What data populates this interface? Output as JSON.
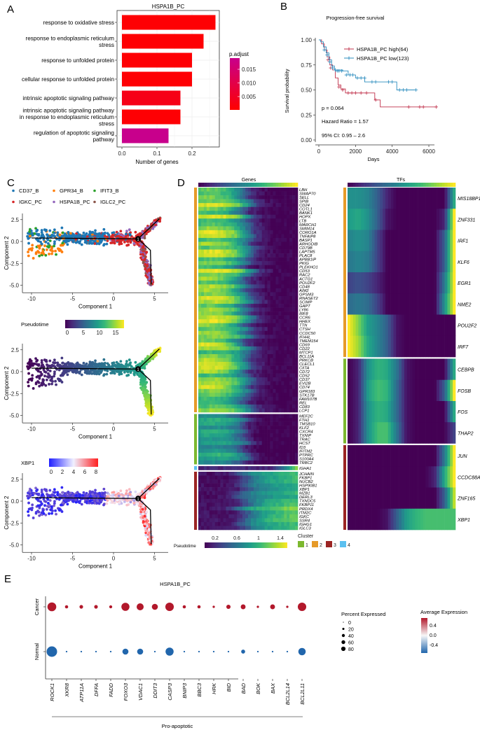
{
  "panels": {
    "a": "A",
    "b": "B",
    "c": "C",
    "d": "D",
    "e": "E"
  },
  "chart_data": [
    {
      "panel": "A",
      "type": "bar",
      "orientation": "horizontal",
      "title": "HSPA1B_PC",
      "xlabel": "Number of genes",
      "xticks": [
        "0.0",
        "0.1",
        "0.2"
      ],
      "xlim": [
        0,
        0.28
      ],
      "categories": [
        [
          "response to oxidative stress"
        ],
        [
          "response to endoplasmic reticulum",
          "stress"
        ],
        [
          "response to unfolded protein"
        ],
        [
          "cellular response to unfolded protein"
        ],
        [
          "intrinsic apoptotic signaling pathway"
        ],
        [
          "intrinsic apoptotic signaling pathway",
          "in response to endoplasmic reticulum",
          "stress"
        ],
        [
          "regulation of apoptotic signaling",
          "pathway"
        ]
      ],
      "values": [
        0.267,
        0.233,
        0.2,
        0.2,
        0.167,
        0.167,
        0.133
      ],
      "p_adjust": [
        0.0005,
        0.0005,
        0.0005,
        0.0005,
        0.003,
        0.0005,
        0.019
      ],
      "legend": {
        "title": "p.adjust",
        "ticks": [
          "0.015",
          "0.010",
          "0.005"
        ],
        "low_color": "#ff0000",
        "high_color": "#c8008c"
      },
      "grid": true
    },
    {
      "panel": "B",
      "type": "line",
      "title": "Progression-free survival",
      "xlabel": "Days",
      "ylabel": "Survival probability",
      "xlim": [
        0,
        6000
      ],
      "ylim": [
        0,
        1
      ],
      "xticks": [
        "0",
        "2000",
        "4000",
        "6000"
      ],
      "yticks": [
        "0.00",
        "0.25",
        "0.50",
        "0.75",
        "1.00"
      ],
      "legend_position": "top-right",
      "series": [
        {
          "name": "HSPA1B_PC high(64)",
          "color": "#c0304a",
          "steps": [
            [
              0,
              1
            ],
            [
              150,
              0.96
            ],
            [
              300,
              0.9
            ],
            [
              450,
              0.83
            ],
            [
              600,
              0.75
            ],
            [
              750,
              0.7
            ],
            [
              900,
              0.62
            ],
            [
              1050,
              0.55
            ],
            [
              1200,
              0.51
            ],
            [
              1450,
              0.47
            ],
            [
              3050,
              0.4
            ],
            [
              3350,
              0.33
            ],
            [
              6400,
              0.33
            ]
          ],
          "censored": [
            [
              500,
              0.8
            ],
            [
              650,
              0.72
            ],
            [
              1100,
              0.53
            ],
            [
              1300,
              0.5
            ],
            [
              1600,
              0.47
            ],
            [
              1800,
              0.47
            ],
            [
              2000,
              0.47
            ],
            [
              2300,
              0.47
            ],
            [
              2600,
              0.47
            ],
            [
              3100,
              0.4
            ],
            [
              4900,
              0.33
            ],
            [
              5500,
              0.33
            ],
            [
              5700,
              0.33
            ],
            [
              6400,
              0.33
            ]
          ]
        },
        {
          "name": "HSPA1B_PC low(123)",
          "color": "#2b8cbe",
          "steps": [
            [
              0,
              1
            ],
            [
              100,
              0.98
            ],
            [
              250,
              0.93
            ],
            [
              400,
              0.87
            ],
            [
              550,
              0.8
            ],
            [
              700,
              0.74
            ],
            [
              850,
              0.7
            ],
            [
              1300,
              0.69
            ],
            [
              1600,
              0.65
            ],
            [
              2000,
              0.62
            ],
            [
              2500,
              0.58
            ],
            [
              4200,
              0.58
            ],
            [
              4250,
              0.5
            ],
            [
              5300,
              0.5
            ]
          ],
          "censored": [
            [
              300,
              0.9
            ],
            [
              450,
              0.85
            ],
            [
              600,
              0.78
            ],
            [
              750,
              0.72
            ],
            [
              900,
              0.7
            ],
            [
              1000,
              0.69
            ],
            [
              1100,
              0.69
            ],
            [
              1250,
              0.69
            ],
            [
              1500,
              0.65
            ],
            [
              1700,
              0.65
            ],
            [
              1850,
              0.65
            ],
            [
              2100,
              0.62
            ],
            [
              2300,
              0.62
            ],
            [
              2500,
              0.62
            ],
            [
              2900,
              0.58
            ],
            [
              3100,
              0.58
            ],
            [
              3800,
              0.58
            ],
            [
              4000,
              0.58
            ],
            [
              4400,
              0.5
            ],
            [
              4600,
              0.5
            ],
            [
              4800,
              0.5
            ],
            [
              5300,
              0.5
            ]
          ]
        }
      ],
      "annotations": [
        "p = 0.064",
        "Hazard Ratio = 1.57",
        "95% CI: 0.95 – 2.6"
      ]
    },
    {
      "panel": "C",
      "type": "scatter",
      "xlabel": "Component 1",
      "ylabel": "Component 2",
      "xticks": [
        "-10",
        "-5",
        "0",
        "5"
      ],
      "yticks": [
        "2.5",
        "0.0",
        "-2.5",
        "-5.0"
      ],
      "xlim": [
        -11,
        6.5
      ],
      "ylim": [
        -5.5,
        3
      ],
      "branch_point_label": "1",
      "legend_categories": [
        {
          "name": "CD37_B",
          "color": "#1f77b4"
        },
        {
          "name": "GPR34_B",
          "color": "#ff7f0e"
        },
        {
          "name": "IFIT3_B",
          "color": "#2ca02c"
        },
        {
          "name": "IGKC_PC",
          "color": "#d62728"
        },
        {
          "name": "HSPA1B_PC",
          "color": "#9467bd"
        },
        {
          "name": "IGLC2_PC",
          "color": "#8c564b"
        }
      ],
      "pseudotime_legend": {
        "title": "Pseudotime",
        "ticks": [
          "0",
          "5",
          "10",
          "15"
        ]
      },
      "xbp1_legend": {
        "title": "XBP1",
        "ticks": [
          "0",
          "2",
          "4",
          "6",
          "8"
        ]
      }
    },
    {
      "panel": "D",
      "type": "heatmap",
      "titles": {
        "genes": "Genes",
        "tfs": "TFs"
      },
      "pseudotime_legend": {
        "title": "Pseudotime",
        "ticks": [
          "0.2",
          "0.6",
          "1",
          "1.4"
        ]
      },
      "cluster_legend": {
        "title": "Cluster",
        "items": [
          {
            "label": "1",
            "color": "#7cb82f"
          },
          {
            "label": "2",
            "color": "#e69a28"
          },
          {
            "label": "3",
            "color": "#9b2423"
          },
          {
            "label": "4",
            "color": "#5bc0f0"
          }
        ]
      },
      "gene_cluster_profiles": {
        "2": [
          0.85,
          0.9,
          0.85,
          0.75,
          0.5,
          0.15,
          0.05,
          0,
          0,
          0
        ],
        "1": [
          0.55,
          0.6,
          0.6,
          0.55,
          0.4,
          0.1,
          0,
          0,
          0,
          0
        ],
        "4": [
          0.1,
          0.1,
          0.1,
          0.1,
          0.1,
          0.1,
          0.1,
          0.3,
          0.6,
          0.9
        ],
        "3": [
          0.05,
          0.05,
          0.05,
          0.1,
          0.3,
          0.5,
          0.6,
          0.65,
          0.7,
          0.75
        ]
      },
      "gene_clusters": [
        {
          "cluster": "2",
          "genes": [
            "LBH",
            "SWAP70",
            "SELL",
            "SPIB",
            "CD24",
            "COTL1",
            "BANK1",
            "HOPX",
            "LTB",
            "MARCH1",
            "SMIM14",
            "CORO1A",
            "TNFAIP8",
            "BASP1",
            "ARHGDIB",
            "CD79B",
            "LAPTM5",
            "PLAC8",
            "APBB1IP",
            "PKIG",
            "PLEKHO1",
            "CD53",
            "RAC2",
            "ACTG1",
            "POU2F2",
            "CD48",
            "AIM2",
            "GPSM3",
            "RNASET2",
            "SCIMP",
            "GAPT",
            "LY86",
            "IRF8",
            "CCR6",
            "HHEX",
            "TTN",
            "CTSH",
            "CCDC50",
            "IFI44L",
            "TMEM154",
            "CD69",
            "CD22",
            "MTCP1",
            "BCL11A",
            "PRKCB",
            "CLECL1",
            "CIITA",
            "CD72",
            "CD52",
            "CD37",
            "EVI2B",
            "CD74",
            "GPR183",
            "STK17B",
            "FAM107B",
            "REL",
            "CD83",
            "LCP1"
          ]
        },
        {
          "cluster": "1",
          "genes": [
            "MEF2C",
            "FTH1",
            "TMSB10",
            "KLF2",
            "CXCR4",
            "TXNIP",
            "TRAC",
            "HCST",
            "ID3",
            "IFITM2",
            "PTPRC",
            "S100A4",
            "TRBC2"
          ]
        },
        {
          "cluster": "4",
          "genes": [
            "IGHA1"
          ]
        },
        {
          "cluster": "3",
          "genes": [
            "JCHAIN",
            "FKBP1",
            "NUCB2",
            "HSP90B1",
            "XBP1",
            "MZB1",
            "DERL3",
            "TXNDC5",
            "FKBP11",
            "PRDX4",
            "ITM2C",
            "IGKC",
            "SSR4",
            "IGHG1",
            "IGLC3"
          ]
        }
      ],
      "tf_clusters": [
        {
          "cluster": "2",
          "tfs": [
            {
              "name": "MIS18BP1",
              "profile": [
                0.5,
                0.5,
                0.45,
                0.3,
                0.1,
                0,
                0,
                0,
                0,
                0,
                0,
                0.6
              ]
            },
            {
              "name": "ZNF331",
              "profile": [
                0.55,
                0.6,
                0.5,
                0.3,
                0.05,
                0,
                0,
                0,
                0,
                0,
                0.1,
                1
              ]
            },
            {
              "name": "IRF1",
              "profile": [
                0.45,
                0.5,
                0.45,
                0.2,
                0,
                0,
                0,
                0,
                0,
                0,
                0.3,
                1
              ]
            },
            {
              "name": "KLF6",
              "profile": [
                0.4,
                0.45,
                0.4,
                0.2,
                0,
                0,
                0,
                0,
                0,
                0,
                0.3,
                1
              ]
            },
            {
              "name": "EGR1",
              "profile": [
                0.2,
                0.25,
                0.2,
                0.1,
                0,
                0,
                0,
                0,
                0,
                0,
                0.4,
                1
              ]
            },
            {
              "name": "NME2",
              "profile": [
                0.35,
                0.4,
                0.35,
                0.2,
                0,
                0,
                0,
                0,
                0,
                0,
                0.5,
                1
              ]
            },
            {
              "name": "POU2F2",
              "profile": [
                1,
                0.8,
                0.55,
                0.45,
                0.3,
                0.05,
                0,
                0,
                0,
                0,
                0,
                0
              ]
            },
            {
              "name": "IRF7",
              "profile": [
                1,
                0.85,
                0.6,
                0.45,
                0.3,
                0.05,
                0,
                0,
                0,
                0,
                0,
                0
              ]
            }
          ]
        },
        {
          "cluster": "1",
          "tfs": [
            {
              "name": "CEBPB",
              "profile": [
                0,
                0.1,
                0.5,
                0.65,
                0.6,
                0.4,
                0.05,
                0,
                0,
                0,
                0,
                0.6
              ]
            },
            {
              "name": "FOSB",
              "profile": [
                0,
                0.1,
                0.55,
                0.7,
                0.65,
                0.35,
                0.05,
                0,
                0,
                0,
                0.3,
                1
              ]
            },
            {
              "name": "FOS",
              "profile": [
                0,
                0.1,
                0.5,
                0.65,
                0.6,
                0.35,
                0.05,
                0,
                0,
                0,
                0,
                0.6
              ]
            },
            {
              "name": "THAP2",
              "profile": [
                0,
                0.1,
                0.5,
                0.7,
                0.7,
                0.4,
                0.05,
                0,
                0,
                0,
                0,
                0.2
              ]
            }
          ]
        },
        {
          "cluster": "3",
          "tfs": [
            {
              "name": "JUN",
              "profile": [
                0,
                0,
                0,
                0,
                0,
                0,
                0,
                0,
                0,
                0,
                0.4,
                1
              ]
            },
            {
              "name": "CCDC88A",
              "profile": [
                0,
                0,
                0,
                0,
                0,
                0,
                0,
                0,
                0,
                0.1,
                0.6,
                1
              ]
            },
            {
              "name": "ZNF165",
              "profile": [
                0,
                0,
                0,
                0,
                0,
                0,
                0,
                0,
                0,
                0,
                0.3,
                0.9
              ]
            },
            {
              "name": "XBP1",
              "profile": [
                0,
                0,
                0,
                0,
                0.05,
                0.3,
                0.55,
                0.65,
                0.7,
                0.7,
                0.7,
                0.7
              ]
            }
          ]
        }
      ]
    },
    {
      "panel": "E",
      "type": "scatter",
      "subtype": "dotplot",
      "title": "HSPA1B_PC",
      "rows": [
        "Cancer",
        "Normal"
      ],
      "genes": [
        "ROCK1",
        "XKR8",
        "ATP11A",
        "DFFA",
        "FADD",
        "FOXO3",
        "VDAC1",
        "DDIT3",
        "CASP3",
        "BNIP3",
        "BBC3",
        "HRK",
        "BID",
        "BAD",
        "BOK",
        "BAX",
        "BCL2L14",
        "BCL2L11"
      ],
      "percent_expressed": {
        "Cancer": [
          60,
          8,
          10,
          10,
          7,
          50,
          38,
          28,
          55,
          8,
          8,
          4,
          14,
          18,
          4,
          18,
          4,
          55
        ],
        "Normal": [
          85,
          2,
          2,
          2,
          2,
          28,
          28,
          2,
          50,
          2,
          2,
          2,
          2,
          12,
          2,
          2,
          2,
          42
        ]
      },
      "average_expression": {
        "Cancer": [
          0.45,
          0.45,
          0.45,
          0.45,
          0.45,
          0.45,
          0.45,
          0.45,
          0.45,
          0.45,
          0.45,
          0.45,
          0.45,
          0.45,
          0.45,
          0.45,
          0.45,
          0.45
        ],
        "Normal": [
          -0.45,
          -0.45,
          -0.45,
          -0.45,
          -0.45,
          -0.45,
          -0.45,
          -0.45,
          -0.45,
          -0.45,
          -0.45,
          -0.45,
          -0.45,
          -0.45,
          -0.45,
          -0.45,
          -0.45,
          -0.45
        ]
      },
      "group_label": "Pro-apoptotic",
      "size_legend": {
        "title": "Percent Expressed",
        "ticks": [
          "0",
          "20",
          "40",
          "60",
          "80"
        ]
      },
      "color_legend": {
        "title": "Average Expression",
        "ticks": [
          "0.4",
          "0.0",
          "-0.4"
        ],
        "high": "#b2182b",
        "mid": "#f7f7f7",
        "low": "#2166ac"
      }
    }
  ]
}
